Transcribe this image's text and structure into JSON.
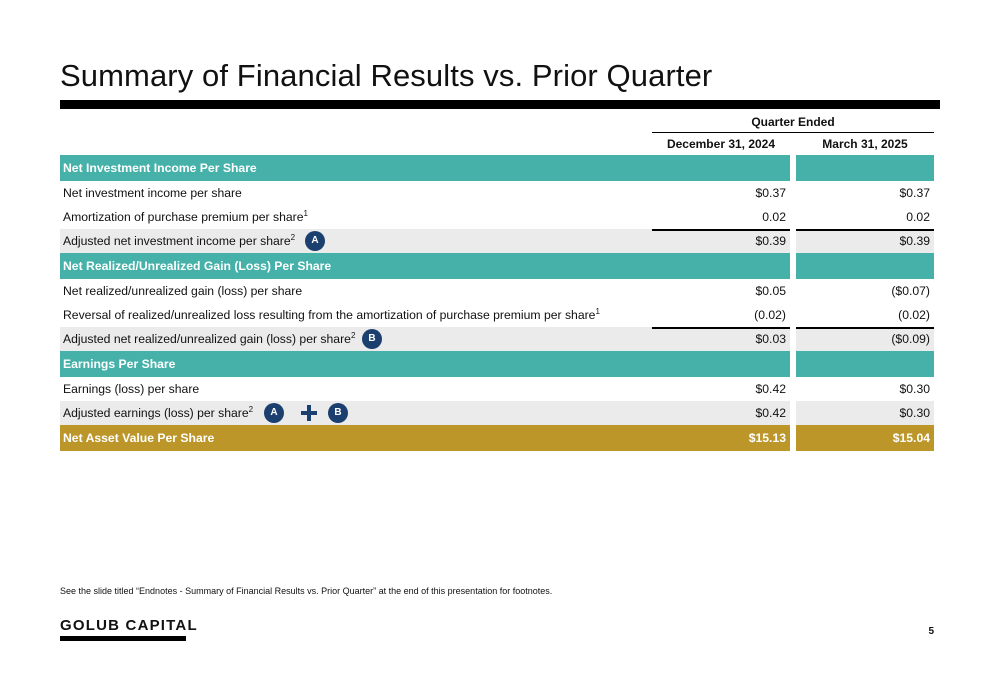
{
  "title": "Summary of Financial Results vs. Prior Quarter",
  "table": {
    "group_header": "Quarter Ended",
    "columns": [
      "December 31, 2024",
      "March 31, 2025"
    ],
    "sections": {
      "nii": "Net Investment Income Per Share",
      "gain": "Net Realized/Unrealized Gain (Loss) Per Share",
      "eps": "Earnings Per Share"
    },
    "rows": {
      "nii_ps": {
        "label": "Net investment income per share",
        "v1": "$0.37",
        "v2": "$0.37"
      },
      "amort": {
        "label": "Amortization of purchase premium per share",
        "sup": "1",
        "v1": "0.02",
        "v2": "0.02"
      },
      "adj_nii": {
        "label": "Adjusted net investment income per share",
        "sup": "2",
        "v1": "$0.39",
        "v2": "$0.39"
      },
      "gain_ps": {
        "label": "Net realized/unrealized gain (loss) per share",
        "v1": "$0.05",
        "v2": "($0.07)"
      },
      "reversal": {
        "label": "Reversal of realized/unrealized loss resulting from the amortization of purchase premium per share",
        "sup": "1",
        "v1": "(0.02)",
        "v2": "(0.02)"
      },
      "adj_gain": {
        "label": "Adjusted net realized/unrealized gain (loss) per share",
        "sup": "2",
        "v1": "$0.03",
        "v2": "($0.09)"
      },
      "eps": {
        "label": "Earnings (loss) per share",
        "v1": "$0.42",
        "v2": "$0.30"
      },
      "adj_eps": {
        "label": "Adjusted earnings (loss) per share",
        "sup": "2",
        "v1": "$0.42",
        "v2": "$0.30"
      },
      "nav": {
        "label": "Net Asset Value Per Share",
        "v1": "$15.13",
        "v2": "$15.04"
      }
    },
    "badges": {
      "a": "A",
      "b": "B"
    }
  },
  "footnote": "See the slide titled “Endnotes - Summary of Financial Results vs. Prior Quarter” at the end of this presentation for footnotes.",
  "logo": "GOLUB CAPITAL",
  "page_number": "5",
  "colors": {
    "teal": "#45b1a9",
    "gold": "#bd962a",
    "navy": "#1b3f6e",
    "shade": "#ebebeb"
  }
}
